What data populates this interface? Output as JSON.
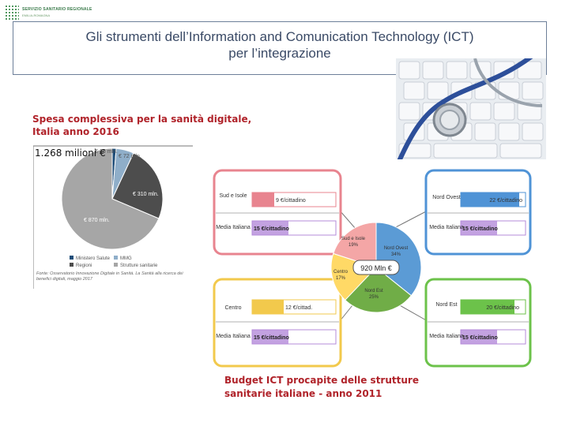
{
  "logo": {
    "line1": "SERVIZIO SANITARIO REGIONALE",
    "line2": "EMILIA-ROMAGNA"
  },
  "slide": {
    "title_line1": "Gli strumenti dell’Information and  Comunication Technology (ICT)",
    "title_line2": "per l’integrazione"
  },
  "chart1": {
    "caption_line1": "Spesa complessiva per la sanità digitale,",
    "caption_line2": "Italia anno 2016",
    "total_label": "1.268 milioni €",
    "colors": {
      "ministero": "#1f4e79",
      "mmg": "#8faec9",
      "regioni": "#4d4d4d",
      "strutture": "#a6a6a6"
    },
    "legend": [
      "Ministero Salute",
      "MMG",
      "Regioni",
      "Strutture sanitarie"
    ],
    "source_note": "Fonte: Osservatorio Innovazione Digitale in Sanità. La Sanità alla ricerca dei benefici digitali, maggio 2017"
  },
  "chart_data": [
    {
      "type": "pie",
      "title": "Spesa complessiva per la sanità digitale, Italia anno 2016",
      "total": "1.268 milioni €",
      "labels": [
        "Ministero Salute",
        "MMG",
        "Regioni",
        "Strutture sanitarie"
      ],
      "values": [
        16,
        72,
        310,
        870
      ],
      "value_labels": [
        "€ 16 mln.",
        "€ 72 mln.",
        "€ 310 mln.",
        "€ 870 mln."
      ],
      "unit": "mln. €"
    },
    {
      "type": "pie",
      "title": "Budget ICT procapite delle strutture sanitarie italiane - anno 2011",
      "total": "920 Mln €",
      "labels": [
        "Nord Ovest",
        "Nord Est",
        "Centro",
        "Sud e Isole"
      ],
      "values": [
        34,
        25,
        17,
        19
      ],
      "value_labels": [
        "34%",
        "25%",
        "17%",
        "19%"
      ],
      "colors": [
        "#5b9bd5",
        "#70ad47",
        "#ffd966",
        "#f4a6a6"
      ]
    }
  ],
  "infographic": {
    "center_label": "920 Mln €",
    "colors": {
      "pink": "#e8848f",
      "blue": "#4f93d6",
      "yellow": "#f2c94c",
      "green": "#6cc24a",
      "purple": "#b48bd9"
    },
    "sud": {
      "region": "Sud e Isole",
      "value": "9 €/cittadino",
      "media_label": "Media Italiana",
      "media_value": "15 €/cittadino",
      "slice_label": "Sud e Isole",
      "slice_pct": "19%"
    },
    "nordovest": {
      "region": "Nord Ovest",
      "value": "22 €/cittadino",
      "media_label": "Media Italiana",
      "media_value": "15 €/cittadino",
      "slice_label": "Nord Ovest",
      "slice_pct": "34%"
    },
    "centro": {
      "region": "Centro",
      "value": "12 €/cittad.",
      "media_label": "Media Italiana",
      "media_value": "15 €/cittadino",
      "slice_label": "Centro",
      "slice_pct": "17%"
    },
    "nordest": {
      "region": "Nord Est",
      "value": "20 €/cittadino",
      "media_label": "Media Italiana",
      "media_value": "15 €/cittadino",
      "slice_label": "Nord Est",
      "slice_pct": "25%"
    }
  },
  "chart2": {
    "caption_line1": "Budget ICT procapite delle strutture",
    "caption_line2": "sanitarie italiane -  anno 2011"
  }
}
